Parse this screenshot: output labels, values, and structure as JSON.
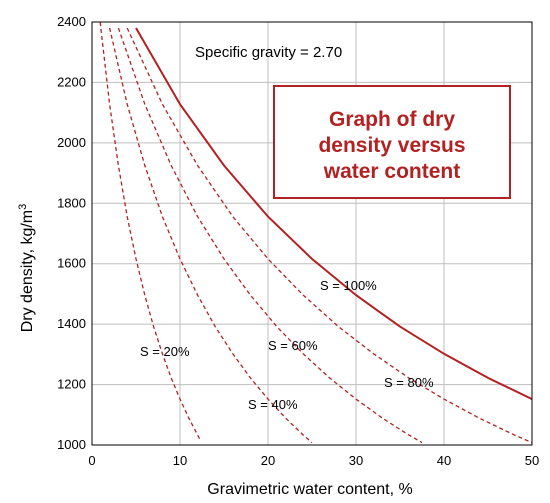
{
  "chart_data": {
    "type": "line",
    "title": "Graph of dry density versus water content",
    "title_lines": [
      "Graph of dry",
      "density versus",
      "water content"
    ],
    "annotation": "Specific gravity = 2.70",
    "xlabel": "Gravimetric water content, %",
    "ylabel": "Dry density, kg/m",
    "ylabel_sup": "3",
    "xlim": [
      0,
      50
    ],
    "ylim": [
      1000,
      2400
    ],
    "x_ticks": [
      0,
      10,
      20,
      30,
      40,
      50
    ],
    "y_ticks": [
      1000,
      1200,
      1400,
      1600,
      1800,
      2000,
      2200,
      2400
    ],
    "grid": true,
    "colors": {
      "curve": "#b22222",
      "title_box": "#b22222",
      "grid": "#bfbfbf"
    },
    "series": [
      {
        "name": "S = 20%",
        "saturation": 20,
        "style": "dashed",
        "x": [
          0,
          1,
          2,
          3,
          4,
          5,
          6,
          7,
          8,
          9,
          10,
          11,
          12.3
        ],
        "y": [
          2700,
          2380,
          2128,
          1925,
          1756,
          1616,
          1496,
          1392,
          1302,
          1222,
          1152,
          1089,
          1017
        ]
      },
      {
        "name": "S = 40%",
        "saturation": 40,
        "style": "dashed",
        "x": [
          2,
          4,
          6,
          8,
          10,
          12,
          14,
          16,
          18,
          20,
          22,
          24,
          25
        ],
        "y": [
          2380,
          2128,
          1925,
          1756,
          1616,
          1496,
          1392,
          1302,
          1222,
          1152,
          1089,
          1033,
          1008
        ]
      },
      {
        "name": "S = 60%",
        "saturation": 60,
        "style": "dashed",
        "x": [
          3,
          6,
          9,
          12,
          15,
          18,
          21,
          24,
          27,
          30,
          33,
          36,
          37.5
        ],
        "y": [
          2380,
          2128,
          1925,
          1756,
          1616,
          1496,
          1392,
          1302,
          1222,
          1152,
          1089,
          1033,
          1008
        ]
      },
      {
        "name": "S = 80%",
        "saturation": 80,
        "style": "dashed",
        "x": [
          4,
          8,
          12,
          16,
          20,
          24,
          28,
          32,
          36,
          40,
          44,
          48,
          50
        ],
        "y": [
          2380,
          2128,
          1925,
          1756,
          1616,
          1496,
          1392,
          1302,
          1222,
          1152,
          1089,
          1033,
          1008
        ]
      },
      {
        "name": "S = 100%",
        "saturation": 100,
        "style": "solid",
        "x": [
          5,
          10,
          15,
          20,
          25,
          30,
          35,
          40,
          45,
          50
        ],
        "y": [
          2380,
          2128,
          1925,
          1756,
          1616,
          1496,
          1392,
          1302,
          1222,
          1152
        ]
      }
    ]
  }
}
